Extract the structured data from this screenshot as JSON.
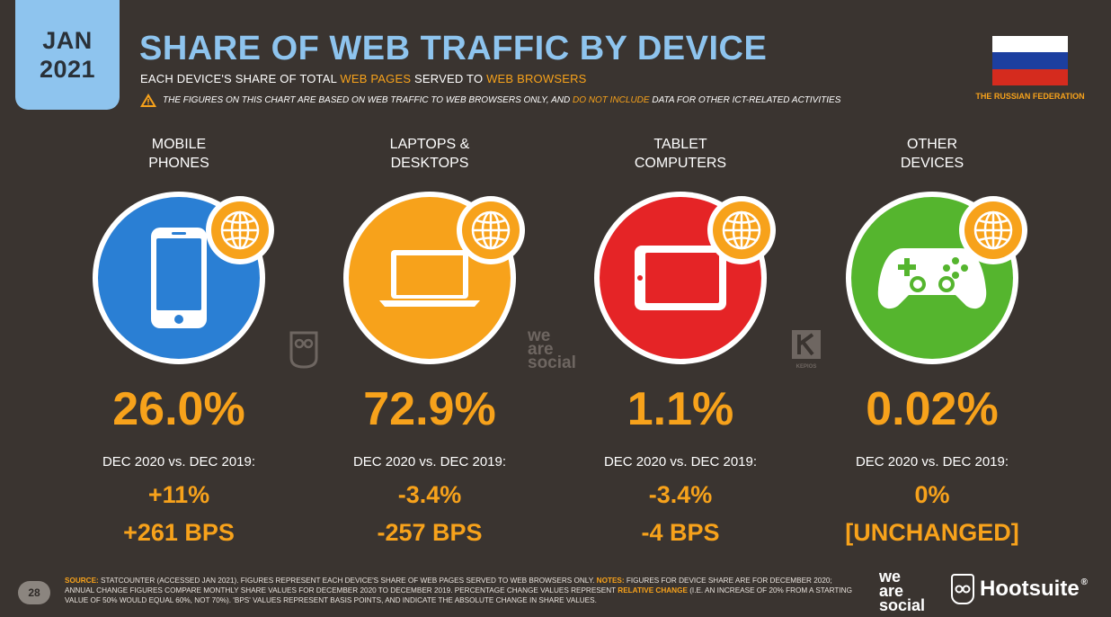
{
  "date_badge": {
    "month": "JAN",
    "year": "2021"
  },
  "title": "SHARE OF WEB TRAFFIC BY DEVICE",
  "subtitle": {
    "part1": "EACH DEVICE'S SHARE OF TOTAL ",
    "highlight1": "WEB PAGES",
    "part2": " SERVED TO ",
    "highlight2": "WEB BROWSERS"
  },
  "warning": {
    "icon": "warning-triangle-icon",
    "part1": "THE FIGURES ON THIS CHART ARE BASED ON WEB TRAFFIC TO WEB BROWSERS ONLY, AND ",
    "highlight": "DO NOT INCLUDE",
    "part2": " DATA FOR OTHER ICT-RELATED ACTIVITIES"
  },
  "country": {
    "name": "THE RUSSIAN FEDERATION",
    "flag_colors": [
      "#ffffff",
      "#1c3fa0",
      "#d52b1e"
    ]
  },
  "colors": {
    "accent": "#f7a21b",
    "title": "#8ec4ee",
    "background": "#3a3430"
  },
  "devices": [
    {
      "label_line1": "MOBILE",
      "label_line2": "PHONES",
      "icon": "mobile-phone-icon",
      "color": "#2a7fd4",
      "share": "26.0%",
      "comparison": "DEC 2020 vs. DEC 2019:",
      "change_pct": "+11%",
      "change_bps": "+261 BPS"
    },
    {
      "label_line1": "LAPTOPS &",
      "label_line2": "DESKTOPS",
      "icon": "laptop-icon",
      "color": "#f7a21b",
      "share": "72.9%",
      "comparison": "DEC 2020 vs. DEC 2019:",
      "change_pct": "-3.4%",
      "change_bps": "-257 BPS"
    },
    {
      "label_line1": "TABLET",
      "label_line2": "COMPUTERS",
      "icon": "tablet-icon",
      "color": "#e52426",
      "share": "1.1%",
      "comparison": "DEC 2020 vs. DEC 2019:",
      "change_pct": "-3.4%",
      "change_bps": "-4 BPS"
    },
    {
      "label_line1": "OTHER",
      "label_line2": "DEVICES",
      "icon": "game-controller-icon",
      "color": "#55b52e",
      "share": "0.02%",
      "comparison": "DEC 2020 vs. DEC 2019:",
      "change_pct": "0%",
      "change_bps": "[UNCHANGED]"
    }
  ],
  "watermarks": {
    "we_are_social": [
      "we",
      "are",
      "social"
    ],
    "kepios": "KEPIOS"
  },
  "footer": {
    "page_number": "28",
    "source_label": "SOURCE:",
    "source_text": " STATCOUNTER (ACCESSED JAN 2021). FIGURES REPRESENT EACH DEVICE'S SHARE OF WEB PAGES SERVED TO WEB BROWSERS ONLY. ",
    "notes_label": "NOTES:",
    "notes_text1": " FIGURES FOR DEVICE SHARE ARE FOR DECEMBER 2020; ANNUAL CHANGE FIGURES COMPARE MONTHLY SHARE VALUES FOR DECEMBER 2020 TO DECEMBER 2019. PERCENTAGE CHANGE VALUES REPRESENT ",
    "notes_highlight": "RELATIVE CHANGE",
    "notes_text2": " (I.E. AN INCREASE OF 20% FROM A STARTING VALUE OF 50% WOULD EQUAL 60%, NOT 70%). 'BPS' VALUES REPRESENT BASIS POINTS, AND INDICATE THE ABSOLUTE CHANGE IN SHARE VALUES.",
    "logo_was": [
      "we",
      "are",
      "social"
    ],
    "logo_hootsuite": "Hootsuite",
    "registered": "®"
  }
}
